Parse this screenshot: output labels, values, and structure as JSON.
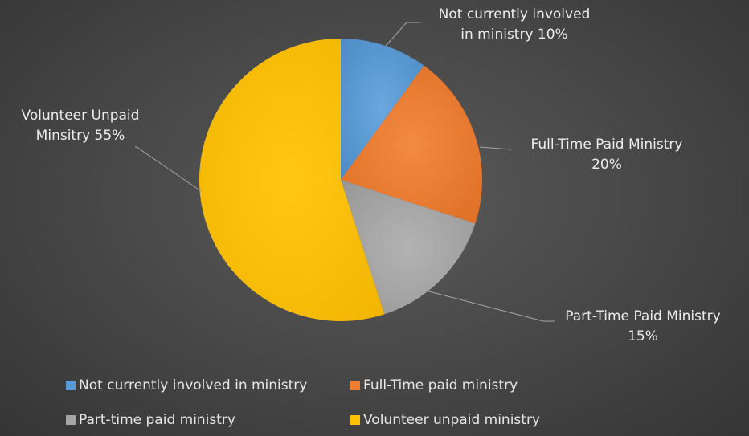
{
  "chart_data": {
    "type": "pie",
    "title": "",
    "slices": [
      {
        "name": "Not currently involved in ministry",
        "value": 10,
        "color": "#5b9bd5",
        "label": "Not currently involved\nin ministry 10%"
      },
      {
        "name": "Full-Time paid ministry",
        "value": 20,
        "color": "#ed7d31",
        "label": "Full-Time Paid Ministry\n20%"
      },
      {
        "name": "Part-time paid ministry",
        "value": 15,
        "color": "#a5a5a5",
        "label": "Part-Time Paid Ministry\n15%"
      },
      {
        "name": "Volunteer unpaid ministry",
        "value": 55,
        "color": "#ffc000",
        "label": "Volunteer Unpaid\nMinsitry 55%"
      }
    ],
    "start_angle": 0,
    "direction": "clockwise",
    "legend": {
      "position": "bottom",
      "entries": [
        "Not currently involved in ministry",
        "Full-Time paid ministry",
        "Part-time paid ministry",
        "Volunteer unpaid ministry"
      ]
    }
  }
}
